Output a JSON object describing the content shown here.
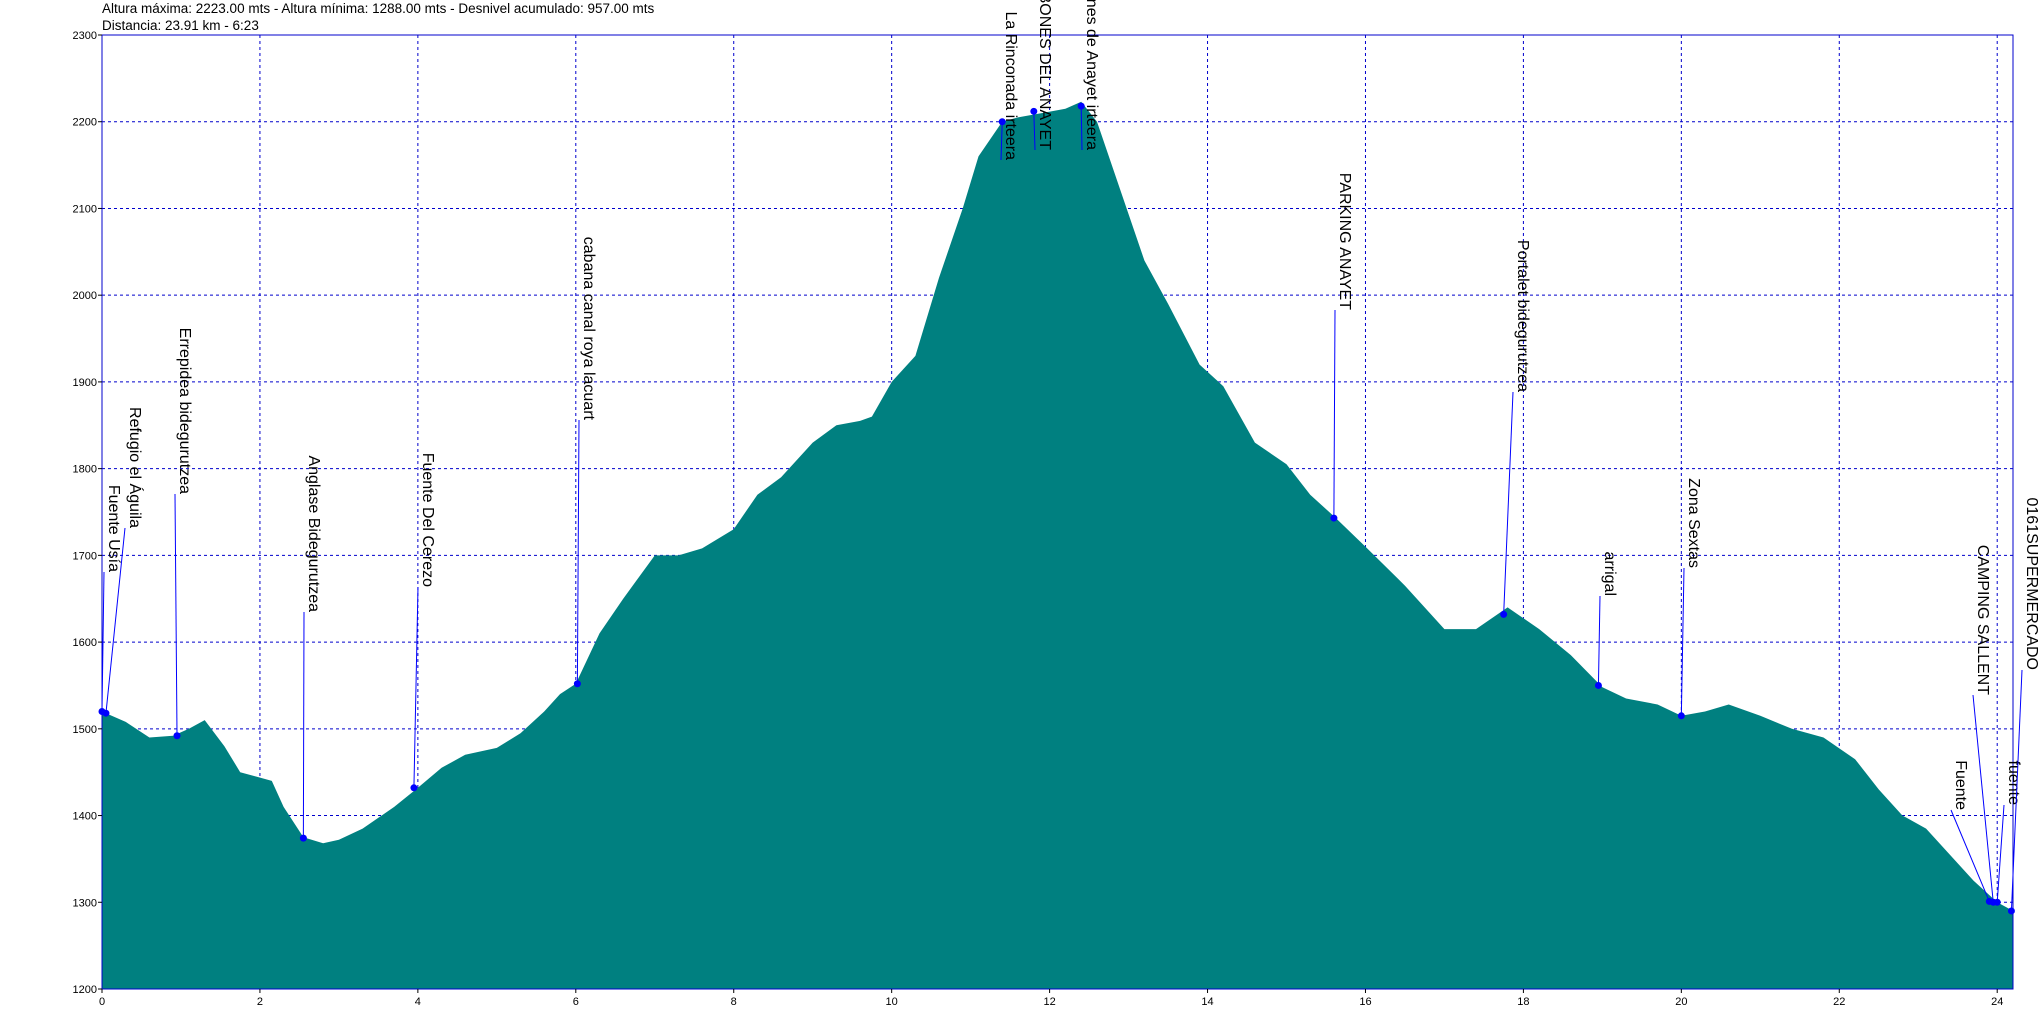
{
  "header": {
    "line1": "Altura máxima: 2223.00 mts - Altura mínima: 1288.00 mts - Desnivel acumulado: 957.00 mts",
    "line2": "Distancia: 23.91 km - 6:23"
  },
  "colors": {
    "area_fill": "#008080",
    "grid": "#0000cc",
    "frame": "#0000cc",
    "waypoint_marker": "#0000ff",
    "leader_line": "#0000ff"
  },
  "chart_data": {
    "type": "area",
    "xlim": [
      0,
      24.2
    ],
    "ylim": [
      1200,
      2300
    ],
    "x_ticks": [
      0,
      2,
      4,
      6,
      8,
      10,
      12,
      14,
      16,
      18,
      20,
      22,
      24
    ],
    "y_ticks": [
      1200,
      1300,
      1400,
      1500,
      1600,
      1700,
      1800,
      1900,
      2000,
      2100,
      2200,
      2300
    ],
    "grid": true,
    "series": [
      {
        "x": [
          0,
          0.3,
          0.6,
          0.9,
          1.1,
          1.3,
          1.55,
          1.75,
          1.95,
          2.15,
          2.3,
          2.55,
          2.8,
          3.0,
          3.3,
          3.7,
          4.0,
          4.3,
          4.6,
          5.0,
          5.3,
          5.6,
          5.8,
          6.0,
          6.3,
          6.6,
          7.0,
          7.3,
          7.6,
          8.0,
          8.3,
          8.6,
          9.0,
          9.3,
          9.6,
          9.75,
          10.0,
          10.3,
          10.6,
          10.9,
          11.1,
          11.4,
          11.6,
          11.9,
          12.2,
          12.4,
          12.6,
          12.9,
          13.2,
          13.5,
          13.9,
          14.2,
          14.6,
          15.0,
          15.3,
          15.6,
          16.0,
          16.5,
          17.0,
          17.4,
          17.8,
          18.2,
          18.6,
          19.0,
          19.3,
          19.7,
          20.0,
          20.3,
          20.6,
          21.0,
          21.4,
          21.8,
          22.2,
          22.5,
          22.8,
          23.1,
          23.4,
          23.7,
          24.0,
          24.2
        ],
        "y": [
          1520,
          1508,
          1490,
          1492,
          1500,
          1510,
          1480,
          1450,
          1445,
          1440,
          1410,
          1375,
          1368,
          1372,
          1385,
          1410,
          1432,
          1455,
          1470,
          1478,
          1495,
          1520,
          1540,
          1552,
          1610,
          1650,
          1700,
          1700,
          1708,
          1730,
          1770,
          1790,
          1830,
          1850,
          1855,
          1860,
          1900,
          1930,
          2020,
          2100,
          2160,
          2200,
          2205,
          2210,
          2215,
          2223,
          2200,
          2120,
          2040,
          1990,
          1920,
          1895,
          1830,
          1805,
          1770,
          1745,
          1710,
          1665,
          1615,
          1615,
          1640,
          1615,
          1585,
          1548,
          1535,
          1528,
          1515,
          1520,
          1528,
          1515,
          1500,
          1490,
          1465,
          1430,
          1400,
          1385,
          1355,
          1325,
          1300,
          1290
        ]
      }
    ],
    "waypoints": [
      {
        "name": "Fuente Usía",
        "x": 0.0,
        "y": 1520
      },
      {
        "name": "Refugio el Águila",
        "x": 0.05,
        "y": 1518
      },
      {
        "name": "Errepidea bidegurutzea",
        "x": 0.95,
        "y": 1492
      },
      {
        "name": "Anglase Bidegurutzea",
        "x": 2.55,
        "y": 1374
      },
      {
        "name": "Fuente Del Cerezo",
        "x": 3.95,
        "y": 1432
      },
      {
        "name": "cabana canal roya lacuart",
        "x": 6.02,
        "y": 1552
      },
      {
        "name": "La Rinconada irteera",
        "x": 11.4,
        "y": 2200
      },
      {
        "name": "IBONES DEL ANAYET",
        "x": 11.8,
        "y": 2212
      },
      {
        "name": "Ibones de Anayet irteera",
        "x": 12.4,
        "y": 2218
      },
      {
        "name": "PARKING ANAYET",
        "x": 15.6,
        "y": 1743
      },
      {
        "name": "Portalet bidegurutzea",
        "x": 17.75,
        "y": 1632
      },
      {
        "name": "arrigal",
        "x": 18.95,
        "y": 1550
      },
      {
        "name": "Zona Sextas",
        "x": 20.0,
        "y": 1515
      },
      {
        "name": "Fuente",
        "x": 23.9,
        "y": 1301
      },
      {
        "name": "CAMPING SALLENT",
        "x": 23.95,
        "y": 1300
      },
      {
        "name": "fuente",
        "x": 24.0,
        "y": 1300
      },
      {
        "name": "0161SUPERMERCADO",
        "x": 24.18,
        "y": 1290
      }
    ]
  }
}
